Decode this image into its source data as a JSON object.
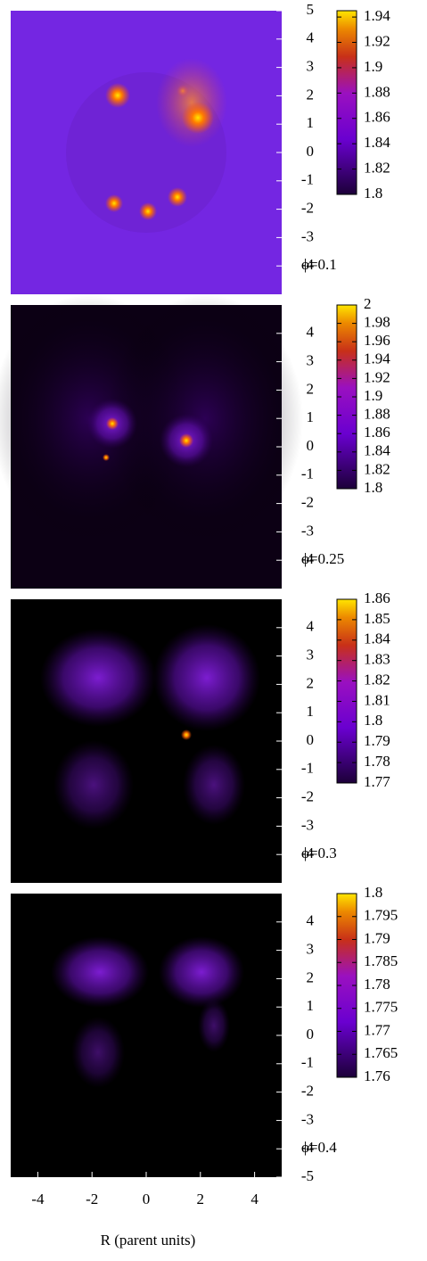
{
  "chart_data": [
    {
      "type": "heatmap",
      "label": "ϕ=0.1",
      "ylim": [
        -5,
        5
      ],
      "yticks": [
        5,
        4,
        3,
        2,
        1,
        0,
        -1,
        -2,
        -3,
        -4
      ],
      "clim": [
        1.8,
        1.945
      ],
      "cticks": [
        1.8,
        1.82,
        1.84,
        1.86,
        1.88,
        1.9,
        1.92,
        1.94
      ]
    },
    {
      "type": "heatmap",
      "label": "ϕ=0.25",
      "ylim": [
        -5,
        5
      ],
      "yticks": [
        4,
        3,
        2,
        1,
        0,
        -1,
        -2,
        -3,
        -4
      ],
      "clim": [
        1.8,
        2
      ],
      "cticks": [
        1.8,
        1.82,
        1.84,
        1.86,
        1.88,
        1.9,
        1.92,
        1.94,
        1.96,
        1.98,
        2
      ]
    },
    {
      "type": "heatmap",
      "label": "ϕ=0.3",
      "ylim": [
        -5,
        5
      ],
      "yticks": [
        4,
        3,
        2,
        1,
        0,
        -1,
        -2,
        -3,
        -4
      ],
      "clim": [
        1.77,
        1.86
      ],
      "cticks": [
        1.77,
        1.78,
        1.79,
        1.8,
        1.81,
        1.82,
        1.83,
        1.84,
        1.85,
        1.86
      ]
    },
    {
      "type": "heatmap",
      "label": "ϕ=0.4",
      "ylim": [
        -5,
        5
      ],
      "yticks": [
        4,
        3,
        2,
        1,
        0,
        -1,
        -2,
        -3,
        -4,
        -5
      ],
      "clim": [
        1.76,
        1.8
      ],
      "cticks": [
        1.76,
        1.765,
        1.77,
        1.775,
        1.78,
        1.785,
        1.79,
        1.795,
        1.8
      ],
      "xlim": [
        -5,
        5
      ],
      "xticks": [
        -4,
        -2,
        0,
        2,
        4
      ],
      "xlabel": "R (parent units)"
    }
  ]
}
